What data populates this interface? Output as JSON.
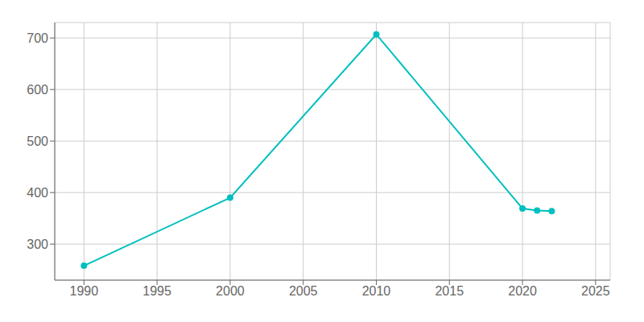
{
  "chart_data": {
    "type": "line",
    "x": [
      1990,
      2000,
      2010,
      2020,
      2021,
      2022
    ],
    "values": [
      258,
      390,
      707,
      369,
      365,
      364
    ],
    "color": "#00BFBF",
    "marker": "circle",
    "xlim": [
      1988,
      2026
    ],
    "ylim": [
      230,
      730
    ],
    "xticks": [
      1990,
      1995,
      2000,
      2005,
      2010,
      2015,
      2020,
      2025
    ],
    "yticks": [
      300,
      400,
      500,
      600,
      700
    ],
    "grid": true
  }
}
